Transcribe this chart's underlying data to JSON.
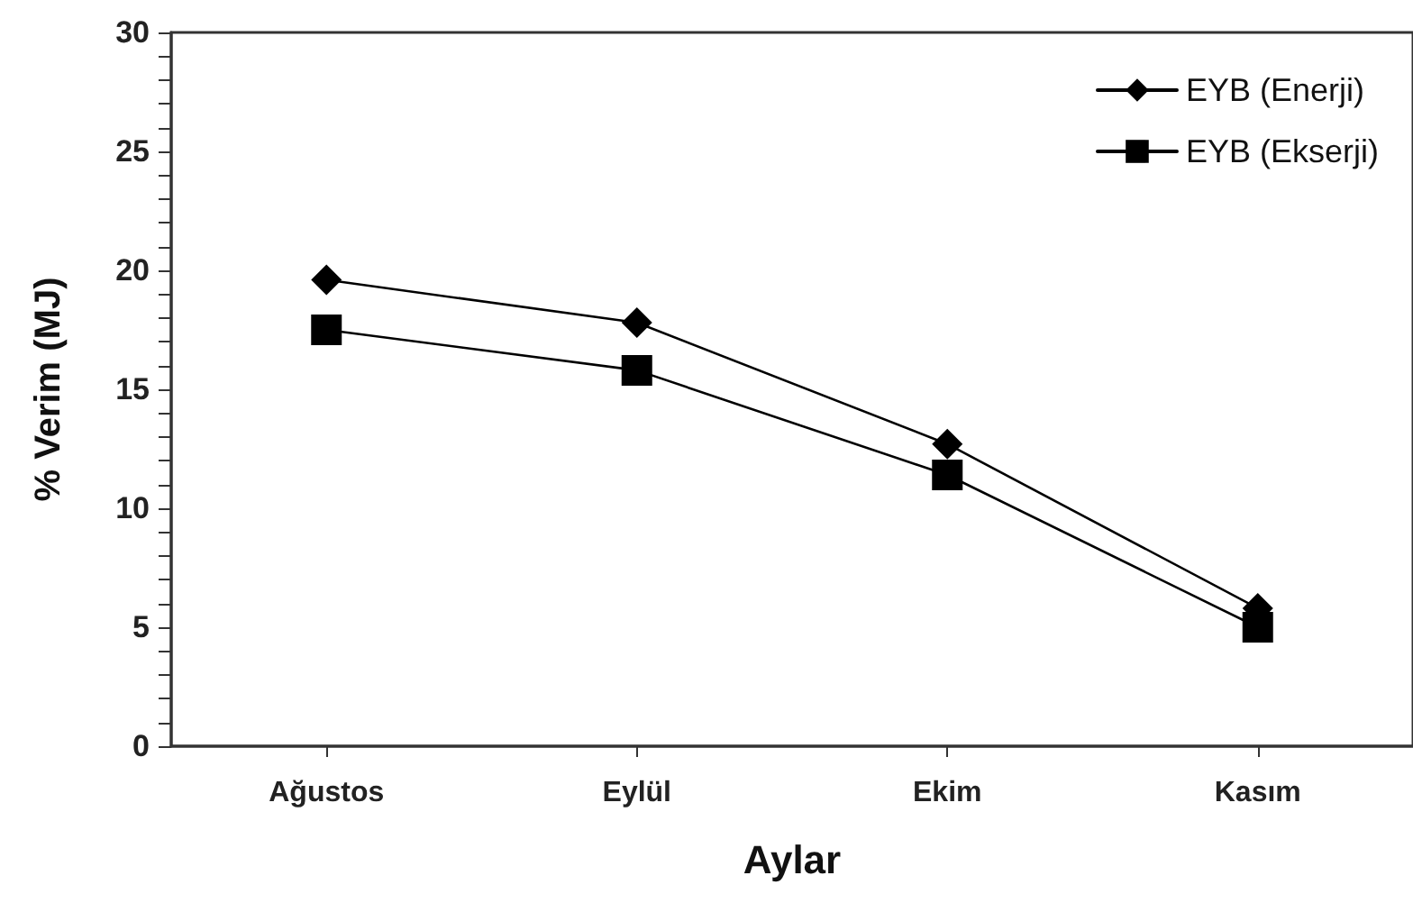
{
  "chart_data": {
    "type": "line",
    "xlabel": "Aylar",
    "ylabel": "% Verim (MJ)",
    "categories": [
      "Ağustos",
      "Eylül",
      "Ekim",
      "Kasım"
    ],
    "series": [
      {
        "name": "EYB (Enerji)",
        "color": "#000000",
        "marker": "diamond",
        "values": [
          19.6,
          17.8,
          12.7,
          5.8
        ]
      },
      {
        "name": "EYB (Ekserji)",
        "color": "#000000",
        "marker": "square",
        "values": [
          17.5,
          15.8,
          11.4,
          5.0
        ]
      }
    ],
    "ylim": [
      0,
      30
    ],
    "yticks": [
      0,
      5,
      10,
      15,
      20,
      25,
      30
    ],
    "legend": "top right",
    "line_style": "solid"
  }
}
